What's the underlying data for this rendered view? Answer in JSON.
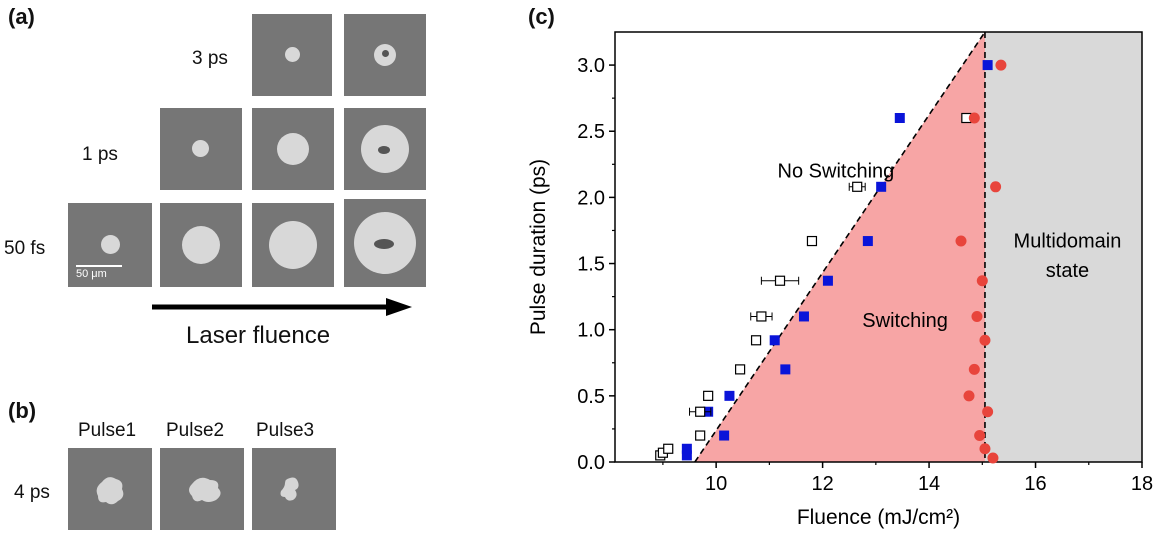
{
  "panel_a": {
    "label": "(a)",
    "rows": [
      {
        "label": "3 ps"
      },
      {
        "label": "1 ps"
      },
      {
        "label": "50 fs"
      }
    ],
    "scale_bar": "50 μm",
    "arrow_label": "Laser fluence"
  },
  "panel_b": {
    "label": "(b)",
    "columns": [
      "Pulse1",
      "Pulse2",
      "Pulse3"
    ],
    "row_label": "4 ps"
  },
  "panel_c": {
    "label": "(c)"
  },
  "chart_data": {
    "type": "scatter",
    "xlabel": "Fluence (mJ/cm²)",
    "ylabel": "Pulse duration (ps)",
    "xlim": [
      8.1,
      18
    ],
    "ylim": [
      0,
      3.25
    ],
    "xticks": [
      10,
      12,
      14,
      16,
      18
    ],
    "yticks": [
      0.0,
      0.5,
      1.0,
      1.5,
      2.0,
      2.5,
      3.0
    ],
    "region_labels": {
      "no_switching": "No Switching",
      "switching": "Switching",
      "multidomain_line1": "Multidomain",
      "multidomain_line2": "state"
    },
    "colors": {
      "switching_region": "#f7a5a5",
      "multidomain_region": "#d9d9d9",
      "blue_squares": "#0a14d9",
      "red_circles": "#e8453c"
    },
    "boundaries": {
      "switching_line": [
        [
          9.6,
          0.0
        ],
        [
          15.05,
          3.25
        ]
      ],
      "multidomain_line_x": 15.05
    },
    "series": [
      {
        "marker": "blue-square",
        "points": [
          [
            9.45,
            0.05
          ],
          [
            9.45,
            0.1
          ],
          [
            10.15,
            0.2
          ],
          [
            9.85,
            0.38
          ],
          [
            10.25,
            0.5
          ],
          [
            11.3,
            0.7
          ],
          [
            11.1,
            0.92
          ],
          [
            11.65,
            1.1
          ],
          [
            12.1,
            1.37
          ],
          [
            12.85,
            1.67
          ],
          [
            13.1,
            2.08
          ],
          [
            13.45,
            2.6
          ],
          [
            15.1,
            3.0
          ]
        ]
      },
      {
        "marker": "open-square",
        "points": [
          [
            8.95,
            0.05
          ],
          [
            9.0,
            0.07
          ],
          [
            9.1,
            0.1
          ],
          [
            9.7,
            0.2
          ],
          [
            9.7,
            0.38
          ],
          [
            9.85,
            0.5
          ],
          [
            10.45,
            0.7
          ],
          [
            10.75,
            0.92
          ],
          [
            10.85,
            1.1
          ],
          [
            11.2,
            1.37
          ],
          [
            11.8,
            1.67
          ],
          [
            12.65,
            2.08
          ],
          [
            14.7,
            2.6
          ]
        ],
        "xerr": [
          0,
          0,
          0,
          0,
          0.2,
          0,
          0,
          0,
          0.2,
          0.35,
          0,
          0.15,
          0
        ]
      },
      {
        "marker": "red-circle",
        "points": [
          [
            15.2,
            0.03
          ],
          [
            15.05,
            0.1
          ],
          [
            14.95,
            0.2
          ],
          [
            15.1,
            0.38
          ],
          [
            14.75,
            0.5
          ],
          [
            14.85,
            0.7
          ],
          [
            15.05,
            0.92
          ],
          [
            14.9,
            1.1
          ],
          [
            15.0,
            1.37
          ],
          [
            14.6,
            1.67
          ],
          [
            15.25,
            2.08
          ],
          [
            14.85,
            2.6
          ],
          [
            15.35,
            3.0
          ]
        ]
      }
    ]
  }
}
